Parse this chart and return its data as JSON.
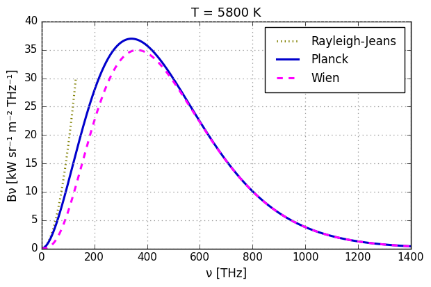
{
  "title": "T = 5800 K",
  "xlabel": "ν [THz]",
  "ylabel": "Bν [kW sr⁻¹ m⁻² THz⁻¹]",
  "T": 5800,
  "nu_max": 1400,
  "nu_points": 2000,
  "ylim": [
    0,
    40
  ],
  "xlim": [
    0,
    1400
  ],
  "planck_color": "#0000CC",
  "wien_color": "#FF00FF",
  "rj_color": "#808000",
  "planck_lw": 2.2,
  "wien_lw": 2.2,
  "rj_lw": 2.2,
  "planck_ls": "solid",
  "wien_ls": "dashed",
  "rj_ls": "dotted",
  "legend_labels": [
    "Rayleigh-Jeans",
    "Planck",
    "Wien"
  ],
  "grid_color": "#999999",
  "background_color": "#ffffff",
  "title_fontsize": 13,
  "label_fontsize": 12,
  "tick_fontsize": 11,
  "legend_fontsize": 12,
  "wien_nu_max": 1400,
  "rj_nu_max": 130
}
